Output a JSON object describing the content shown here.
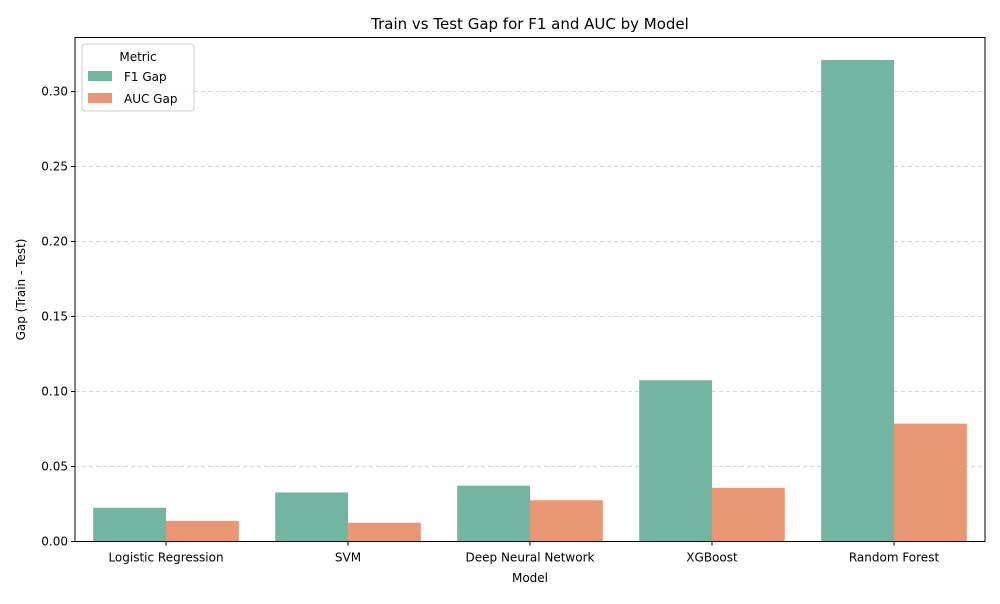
{
  "chart_data": {
    "type": "bar",
    "title": "Train vs Test Gap for F1 and AUC by Model",
    "xlabel": "Model",
    "ylabel": "Gap (Train - Test)",
    "categories": [
      "Logistic Regression",
      "SVM",
      "Deep Neural Network",
      "XGBoost",
      "Random Forest"
    ],
    "series": [
      {
        "name": "F1 Gap",
        "color": "#72b6a1",
        "values": [
          0.0225,
          0.0327,
          0.0372,
          0.1075,
          0.321
        ]
      },
      {
        "name": "AUC Gap",
        "color": "#e99675",
        "values": [
          0.0138,
          0.0125,
          0.0275,
          0.0358,
          0.0786
        ]
      }
    ],
    "ylim": [
      0,
      0.336
    ],
    "yticks": [
      0.0,
      0.05,
      0.1,
      0.15,
      0.2,
      0.25,
      0.3
    ],
    "ytick_labels": [
      "0.00",
      "0.05",
      "0.10",
      "0.15",
      "0.20",
      "0.25",
      "0.30"
    ],
    "grid": "y-dashed",
    "legend": {
      "title": "Metric",
      "placement": "top-left"
    }
  }
}
